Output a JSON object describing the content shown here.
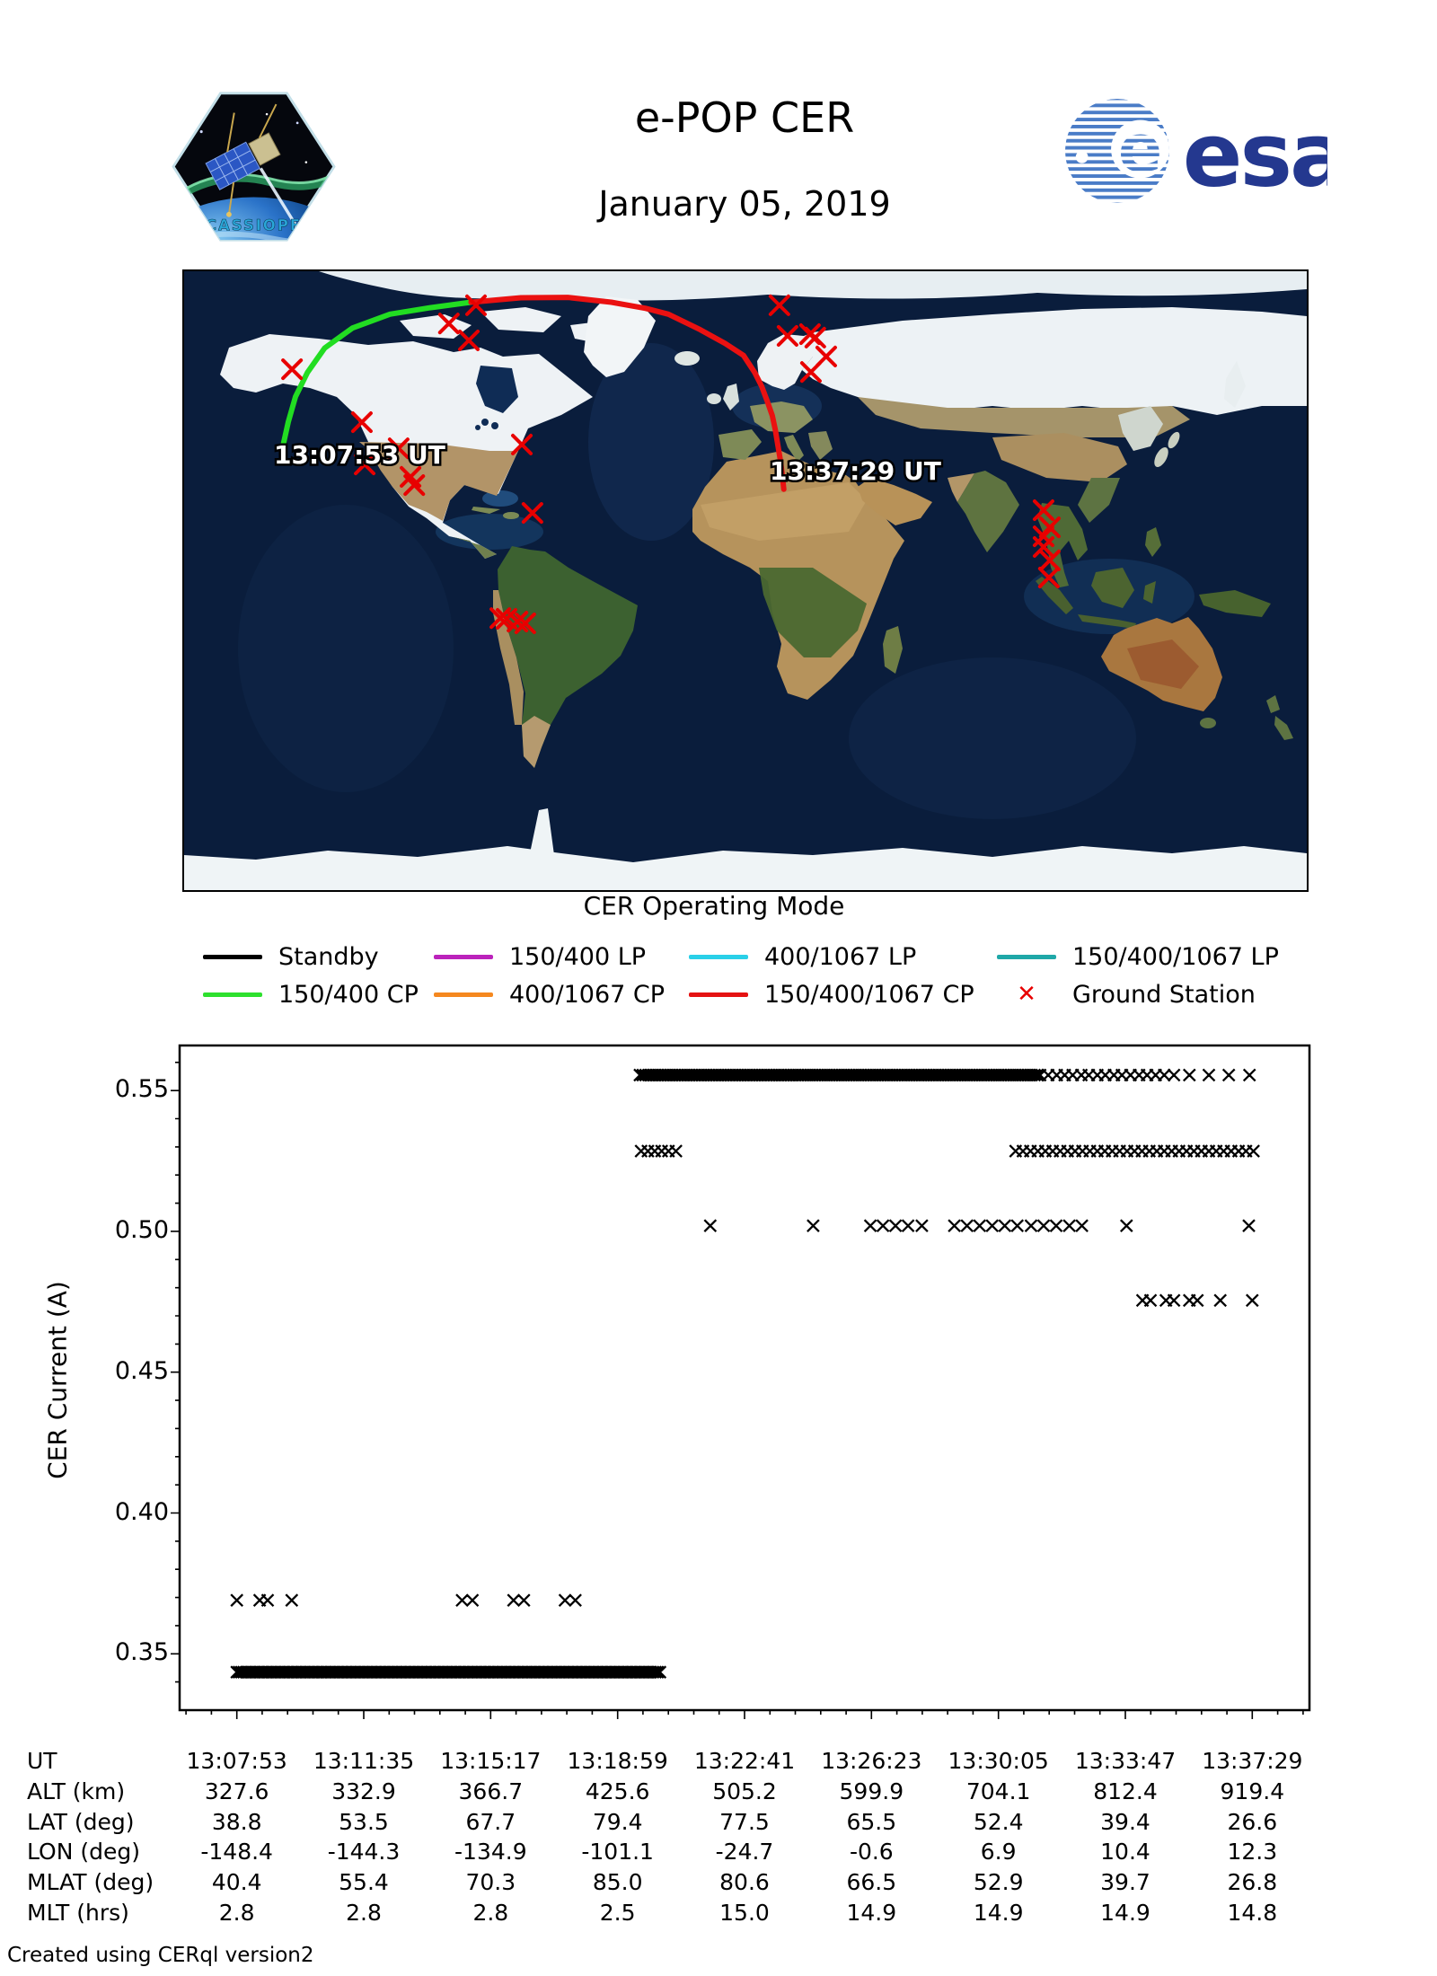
{
  "header": {
    "title": "e-POP CER",
    "subtitle": "January 05, 2019",
    "patch_text": "CASSIOPE",
    "esa_wordmark": "esa",
    "esa_blue": "#24388f"
  },
  "map": {
    "start_time_label": "13:07:53 UT",
    "end_time_label": "13:37:29 UT",
    "track_green_color": "#22dd22",
    "track_red_color": "#ea1111",
    "station_color": "#e80000",
    "track_green": [
      [
        -148.4,
        38.8
      ],
      [
        -146.6,
        46.2
      ],
      [
        -144.3,
        53.5
      ],
      [
        -140.5,
        60.5
      ],
      [
        -134.9,
        67.7
      ],
      [
        -126.0,
        73.5
      ],
      [
        -114.0,
        77.5
      ],
      [
        -101.1,
        79.4
      ],
      [
        -88.0,
        81.0
      ]
    ],
    "track_red": [
      [
        -88.0,
        81.0
      ],
      [
        -72.0,
        82.3
      ],
      [
        -57.0,
        82.4
      ],
      [
        -43.0,
        81.0
      ],
      [
        -32.0,
        79.2
      ],
      [
        -24.7,
        77.5
      ],
      [
        -14.5,
        73.0
      ],
      [
        -6.5,
        69.0
      ],
      [
        -0.6,
        65.5
      ],
      [
        3.0,
        60.5
      ],
      [
        5.2,
        56.5
      ],
      [
        6.9,
        52.4
      ],
      [
        8.6,
        48.0
      ],
      [
        9.6,
        43.8
      ],
      [
        10.4,
        39.4
      ],
      [
        11.2,
        35.0
      ],
      [
        11.8,
        30.8
      ],
      [
        12.3,
        26.6
      ]
    ],
    "stations": [
      [
        -145.4,
        61.5
      ],
      [
        -86.4,
        80.1
      ],
      [
        -95.1,
        74.8
      ],
      [
        -88.7,
        69.9
      ],
      [
        -123.0,
        46.1
      ],
      [
        -122.1,
        33.8
      ],
      [
        -111.2,
        38.5
      ],
      [
        -107.4,
        30.2
      ],
      [
        -106.2,
        27.8
      ],
      [
        -71.7,
        39.6
      ],
      [
        -68.3,
        19.7
      ],
      [
        -78.6,
        -10.9
      ],
      [
        -76.6,
        -11.1
      ],
      [
        -73.1,
        -11.9
      ],
      [
        -70.6,
        -12.4
      ],
      [
        10.9,
        80.1
      ],
      [
        13.5,
        71.2
      ],
      [
        20.7,
        71.7
      ],
      [
        22.4,
        70.7
      ],
      [
        25.9,
        65.2
      ],
      [
        21.0,
        60.7
      ],
      [
        95.6,
        20.5
      ],
      [
        97.6,
        15.5
      ],
      [
        95.6,
        12.9
      ],
      [
        95.6,
        9.8
      ],
      [
        97.6,
        5.9
      ],
      [
        97.3,
        0.9
      ]
    ]
  },
  "legend": {
    "title": "CER Operating Mode",
    "items": [
      {
        "label": "Standby",
        "color": "#000000",
        "type": "line",
        "row": 0,
        "col": 0
      },
      {
        "label": "150/400 LP",
        "color": "#bb23bb",
        "type": "line",
        "row": 0,
        "col": 1
      },
      {
        "label": "400/1067 LP",
        "color": "#29d0e8",
        "type": "line",
        "row": 0,
        "col": 2
      },
      {
        "label": "150/400/1067 LP",
        "color": "#1fa8a8",
        "type": "line",
        "row": 0,
        "col": 3
      },
      {
        "label": "150/400 CP",
        "color": "#2ee02e",
        "type": "line",
        "row": 1,
        "col": 0
      },
      {
        "label": "400/1067 CP",
        "color": "#f5881f",
        "type": "line",
        "row": 1,
        "col": 1
      },
      {
        "label": "150/400/1067 CP",
        "color": "#e51212",
        "type": "line",
        "row": 1,
        "col": 2
      },
      {
        "label": "Ground Station",
        "color": "#e80000",
        "type": "cross",
        "row": 1,
        "col": 3
      }
    ]
  },
  "chart_data": {
    "type": "scatter",
    "marker": "x",
    "marker_color": "#000000",
    "ylabel": "CER Current (A)",
    "x_tick_labels": [
      "13:07:53",
      "13:11:35",
      "13:15:17",
      "13:18:59",
      "13:22:41",
      "13:26:23",
      "13:30:05",
      "13:33:47",
      "13:37:29"
    ],
    "x_tick_seconds": [
      0,
      222,
      444,
      666,
      888,
      1110,
      1332,
      1554,
      1776
    ],
    "xlim": [
      -100,
      1876
    ],
    "ylim": [
      0.33,
      0.566
    ],
    "y_ticks": [
      0.35,
      0.4,
      0.45,
      0.5,
      0.55
    ],
    "y_minor_step": 0.01,
    "x_minor_step": 44.4,
    "series": [
      {
        "name": "plateau-0.5555-A",
        "y": 0.5555,
        "runs": [
          [
            705,
            1406,
            5
          ]
        ],
        "points": [
          1419,
          1434,
          1448,
          1462,
          1477,
          1490,
          1505,
          1519,
          1534,
          1548,
          1563,
          1578,
          1592,
          1607,
          1622,
          1639,
          1666,
          1700,
          1735,
          1771
        ]
      },
      {
        "name": "plateau-0.5285-A",
        "y": 0.5285,
        "runs": [
          [
            1362,
            1778,
            13
          ]
        ],
        "points": [
          707,
          719,
          731,
          743,
          755,
          768
        ]
      },
      {
        "name": "plateau-0.502",
        "y": 0.502,
        "runs": [],
        "points": [
          828,
          1008,
          1108,
          1130,
          1152,
          1174,
          1198,
          1255,
          1277,
          1299,
          1321,
          1343,
          1365,
          1389,
          1411,
          1433,
          1456,
          1478,
          1556,
          1770
        ]
      },
      {
        "name": "plateau-0.4755",
        "y": 0.4755,
        "runs": [],
        "points": [
          1584,
          1598,
          1625,
          1639,
          1666,
          1680,
          1720,
          1776
        ]
      },
      {
        "name": "plateau-0.369",
        "y": 0.369,
        "runs": [],
        "points": [
          0,
          40,
          54,
          96,
          394,
          412,
          484,
          502,
          574,
          592
        ]
      },
      {
        "name": "plateau-0.3435",
        "y": 0.3435,
        "runs": [
          [
            0,
            740,
            4
          ]
        ],
        "points": []
      }
    ]
  },
  "table": {
    "rows": [
      {
        "label": "UT",
        "values": [
          "13:07:53",
          "13:11:35",
          "13:15:17",
          "13:18:59",
          "13:22:41",
          "13:26:23",
          "13:30:05",
          "13:33:47",
          "13:37:29"
        ]
      },
      {
        "label": "ALT (km)",
        "values": [
          "327.6",
          "332.9",
          "366.7",
          "425.6",
          "505.2",
          "599.9",
          "704.1",
          "812.4",
          "919.4"
        ]
      },
      {
        "label": "LAT (deg)",
        "values": [
          "38.8",
          "53.5",
          "67.7",
          "79.4",
          "77.5",
          "65.5",
          "52.4",
          "39.4",
          "26.6"
        ]
      },
      {
        "label": "LON (deg)",
        "values": [
          "-148.4",
          "-144.3",
          "-134.9",
          "-101.1",
          "-24.7",
          "-0.6",
          "6.9",
          "10.4",
          "12.3"
        ]
      },
      {
        "label": "MLAT (deg)",
        "values": [
          "40.4",
          "55.4",
          "70.3",
          "85.0",
          "80.6",
          "66.5",
          "52.9",
          "39.7",
          "26.8"
        ]
      },
      {
        "label": "MLT (hrs)",
        "values": [
          "2.8",
          "2.8",
          "2.8",
          "2.5",
          "15.0",
          "14.9",
          "14.9",
          "14.9",
          "14.8"
        ]
      }
    ]
  },
  "footer": "Created using CERql version2"
}
